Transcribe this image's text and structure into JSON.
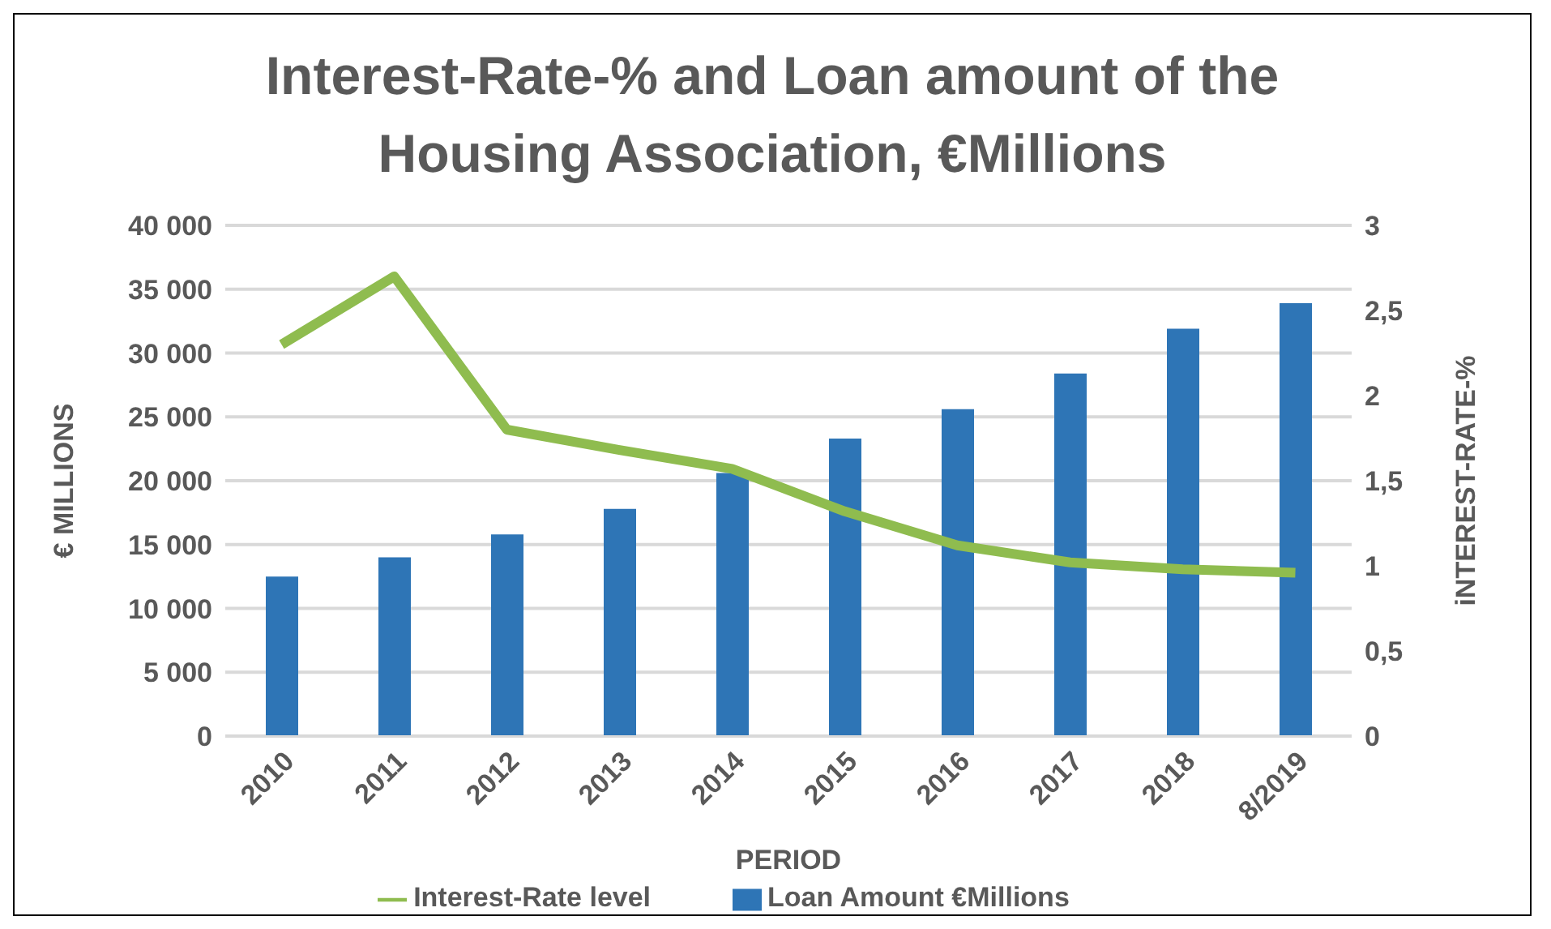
{
  "chart_data": {
    "type": "bar",
    "title": "Interest-Rate-% and Loan amount of the Housing Association, €Millions",
    "xlabel": "PERIOD",
    "ylabel": "€ MILLIONS",
    "y2label": "iNTEREST-RATE-%",
    "categories": [
      "2010",
      "2011",
      "2012",
      "2013",
      "2014",
      "2015",
      "2016",
      "2017",
      "2018",
      "8/2019"
    ],
    "series": [
      {
        "name": "Loan Amount €Millions",
        "color": "#2e75b6",
        "values": [
          12500,
          14000,
          15800,
          17800,
          20600,
          23300,
          25600,
          28400,
          31900,
          33900
        ]
      },
      {
        "name": "Interest-Rate level",
        "type": "line",
        "axis": "y2",
        "color": "#8fbc4f",
        "values": [
          2.3,
          2.7,
          1.8,
          1.68,
          1.57,
          1.32,
          1.12,
          1.02,
          0.98,
          0.96
        ]
      }
    ],
    "ylim": [
      0,
      40000
    ],
    "yticks": [
      0,
      {
        "value": 5000,
        "label": "5 000"
      },
      {
        "value": 10000,
        "label": "10 000"
      },
      {
        "value": 15000,
        "label": "15 000"
      },
      {
        "value": 20000,
        "label": "20 000"
      },
      {
        "value": 25000,
        "label": "25 000"
      },
      {
        "value": 30000,
        "label": "30 000"
      },
      {
        "value": 35000,
        "label": "35 000"
      },
      {
        "value": 40000,
        "label": "40 000"
      }
    ],
    "y2lim": [
      0,
      3
    ],
    "y2ticks": [
      0,
      {
        "value": 0.5,
        "label": "0,5"
      },
      1,
      {
        "value": 1.5,
        "label": "1,5"
      },
      2,
      {
        "value": 2.5,
        "label": "2,5"
      },
      3
    ],
    "grid": "y",
    "legend": "bottom",
    "marker": "none",
    "line_style": "solid"
  }
}
